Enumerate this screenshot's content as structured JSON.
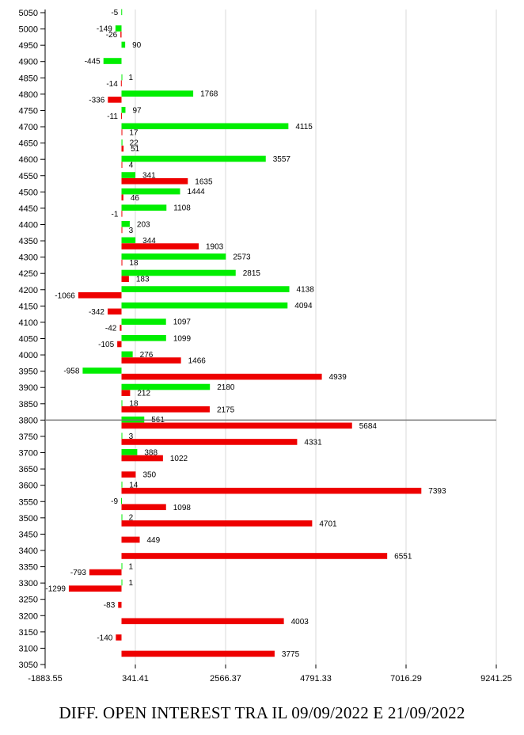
{
  "chart_data": {
    "type": "bar",
    "orientation": "horizontal",
    "title": "DIFF. OPEN INTEREST TRA IL 09/09/2022 E 21/09/2022",
    "x_ticks": [
      "-1883.55",
      "341.41",
      "2566.37",
      "4791.33",
      "7016.29",
      "9241.25"
    ],
    "xlim": [
      -1883.55,
      9241.25
    ],
    "grid": "vertical",
    "reference_line_at": 3800,
    "colors": {
      "green": "#00ee00",
      "red": "#ee0000"
    },
    "series": [
      {
        "name": "green",
        "color": "#00ee00"
      },
      {
        "name": "red",
        "color": "#ee0000"
      }
    ],
    "categories": [
      5050,
      5000,
      4950,
      4900,
      4850,
      4800,
      4750,
      4700,
      4650,
      4600,
      4550,
      4500,
      4450,
      4400,
      4350,
      4300,
      4250,
      4200,
      4150,
      4100,
      4050,
      4000,
      3950,
      3900,
      3850,
      3800,
      3750,
      3700,
      3650,
      3600,
      3550,
      3500,
      3450,
      3400,
      3350,
      3300,
      3250,
      3200,
      3150,
      3100,
      3050
    ],
    "bars": [
      {
        "strike": 5050,
        "series": "green",
        "value": -5,
        "label": "-5"
      },
      {
        "strike": 5000,
        "series": "green",
        "value": -149,
        "label": "-149"
      },
      {
        "strike": 5000,
        "series": "red",
        "value": -26,
        "label": "-26"
      },
      {
        "strike": 4950,
        "series": "green",
        "value": 90,
        "label": "90"
      },
      {
        "strike": 4900,
        "series": "green",
        "value": -445,
        "label": "-445"
      },
      {
        "strike": 4850,
        "series": "green",
        "value": 1,
        "label": "1"
      },
      {
        "strike": 4850,
        "series": "red",
        "value": -14,
        "label": "-14"
      },
      {
        "strike": 4800,
        "series": "green",
        "value": 1768,
        "label": "1768"
      },
      {
        "strike": 4800,
        "series": "red",
        "value": -336,
        "label": "-336"
      },
      {
        "strike": 4750,
        "series": "green",
        "value": 97,
        "label": "97"
      },
      {
        "strike": 4750,
        "series": "red",
        "value": -11,
        "label": "-11"
      },
      {
        "strike": 4700,
        "series": "green",
        "value": 4115,
        "label": "4115"
      },
      {
        "strike": 4700,
        "series": "red",
        "value": 17,
        "label": "17"
      },
      {
        "strike": 4650,
        "series": "green",
        "value": 22,
        "label": "22"
      },
      {
        "strike": 4650,
        "series": "red",
        "value": 51,
        "label": "51"
      },
      {
        "strike": 4600,
        "series": "green",
        "value": 3557,
        "label": "3557"
      },
      {
        "strike": 4600,
        "series": "red",
        "value": 4,
        "label": "4"
      },
      {
        "strike": 4550,
        "series": "green",
        "value": 341,
        "label": "341"
      },
      {
        "strike": 4550,
        "series": "red",
        "value": 1635,
        "label": "1635"
      },
      {
        "strike": 4500,
        "series": "green",
        "value": 1444,
        "label": "1444"
      },
      {
        "strike": 4500,
        "series": "red",
        "value": 46,
        "label": "46"
      },
      {
        "strike": 4450,
        "series": "green",
        "value": 1108,
        "label": "1108"
      },
      {
        "strike": 4450,
        "series": "red",
        "value": -1,
        "label": "-1"
      },
      {
        "strike": 4400,
        "series": "green",
        "value": 203,
        "label": "203"
      },
      {
        "strike": 4400,
        "series": "red",
        "value": 3,
        "label": "3"
      },
      {
        "strike": 4350,
        "series": "green",
        "value": 344,
        "label": "344"
      },
      {
        "strike": 4350,
        "series": "red",
        "value": 1903,
        "label": "1903"
      },
      {
        "strike": 4300,
        "series": "green",
        "value": 2573,
        "label": "2573"
      },
      {
        "strike": 4300,
        "series": "red",
        "value": 18,
        "label": "18"
      },
      {
        "strike": 4250,
        "series": "green",
        "value": 2815,
        "label": "2815"
      },
      {
        "strike": 4250,
        "series": "red",
        "value": 183,
        "label": "183"
      },
      {
        "strike": 4200,
        "series": "green",
        "value": 4138,
        "label": "4138"
      },
      {
        "strike": 4200,
        "series": "red",
        "value": -1066,
        "label": "-1066"
      },
      {
        "strike": 4150,
        "series": "green",
        "value": 4094,
        "label": "4094"
      },
      {
        "strike": 4150,
        "series": "red",
        "value": -342,
        "label": "-342"
      },
      {
        "strike": 4100,
        "series": "green",
        "value": 1097,
        "label": "1097"
      },
      {
        "strike": 4100,
        "series": "red",
        "value": -42,
        "label": "-42"
      },
      {
        "strike": 4050,
        "series": "green",
        "value": 1099,
        "label": "1099"
      },
      {
        "strike": 4050,
        "series": "red",
        "value": -105,
        "label": "-105"
      },
      {
        "strike": 4000,
        "series": "green",
        "value": 276,
        "label": "276"
      },
      {
        "strike": 4000,
        "series": "red",
        "value": 1466,
        "label": "1466"
      },
      {
        "strike": 3950,
        "series": "green",
        "value": -958,
        "label": "-958"
      },
      {
        "strike": 3950,
        "series": "red",
        "value": 4939,
        "label": "4939"
      },
      {
        "strike": 3900,
        "series": "green",
        "value": 2180,
        "label": "2180"
      },
      {
        "strike": 3900,
        "series": "red",
        "value": 212,
        "label": "212"
      },
      {
        "strike": 3850,
        "series": "green",
        "value": 18,
        "label": "18"
      },
      {
        "strike": 3850,
        "series": "red",
        "value": 2175,
        "label": "2175"
      },
      {
        "strike": 3800,
        "series": "green",
        "value": 561,
        "label": "561"
      },
      {
        "strike": 3800,
        "series": "red",
        "value": 5684,
        "label": "5684"
      },
      {
        "strike": 3750,
        "series": "green",
        "value": 3,
        "label": "3"
      },
      {
        "strike": 3750,
        "series": "red",
        "value": 4331,
        "label": "4331"
      },
      {
        "strike": 3700,
        "series": "green",
        "value": 388,
        "label": "388"
      },
      {
        "strike": 3700,
        "series": "red",
        "value": 1022,
        "label": "1022"
      },
      {
        "strike": 3650,
        "series": "red",
        "value": 350,
        "label": "350"
      },
      {
        "strike": 3600,
        "series": "green",
        "value": 14,
        "label": "14"
      },
      {
        "strike": 3600,
        "series": "red",
        "value": 7393,
        "label": "7393"
      },
      {
        "strike": 3550,
        "series": "green",
        "value": -9,
        "label": "-9"
      },
      {
        "strike": 3550,
        "series": "red",
        "value": 1098,
        "label": "1098"
      },
      {
        "strike": 3500,
        "series": "green",
        "value": 2,
        "label": "2"
      },
      {
        "strike": 3500,
        "series": "red",
        "value": 4701,
        "label": "4701"
      },
      {
        "strike": 3450,
        "series": "red",
        "value": 449,
        "label": "449"
      },
      {
        "strike": 3400,
        "series": "red",
        "value": 6551,
        "label": "6551"
      },
      {
        "strike": 3350,
        "series": "green",
        "value": 1,
        "label": "1"
      },
      {
        "strike": 3350,
        "series": "red",
        "value": -793,
        "label": "-793"
      },
      {
        "strike": 3300,
        "series": "green",
        "value": 1,
        "label": "1"
      },
      {
        "strike": 3300,
        "series": "red",
        "value": -1299,
        "label": "-1299"
      },
      {
        "strike": 3250,
        "series": "red",
        "value": -83,
        "label": "-83"
      },
      {
        "strike": 3200,
        "series": "red",
        "value": 4003,
        "label": "4003"
      },
      {
        "strike": 3150,
        "series": "red",
        "value": -140,
        "label": "-140"
      },
      {
        "strike": 3100,
        "series": "red",
        "value": 3775,
        "label": "3775"
      }
    ]
  }
}
